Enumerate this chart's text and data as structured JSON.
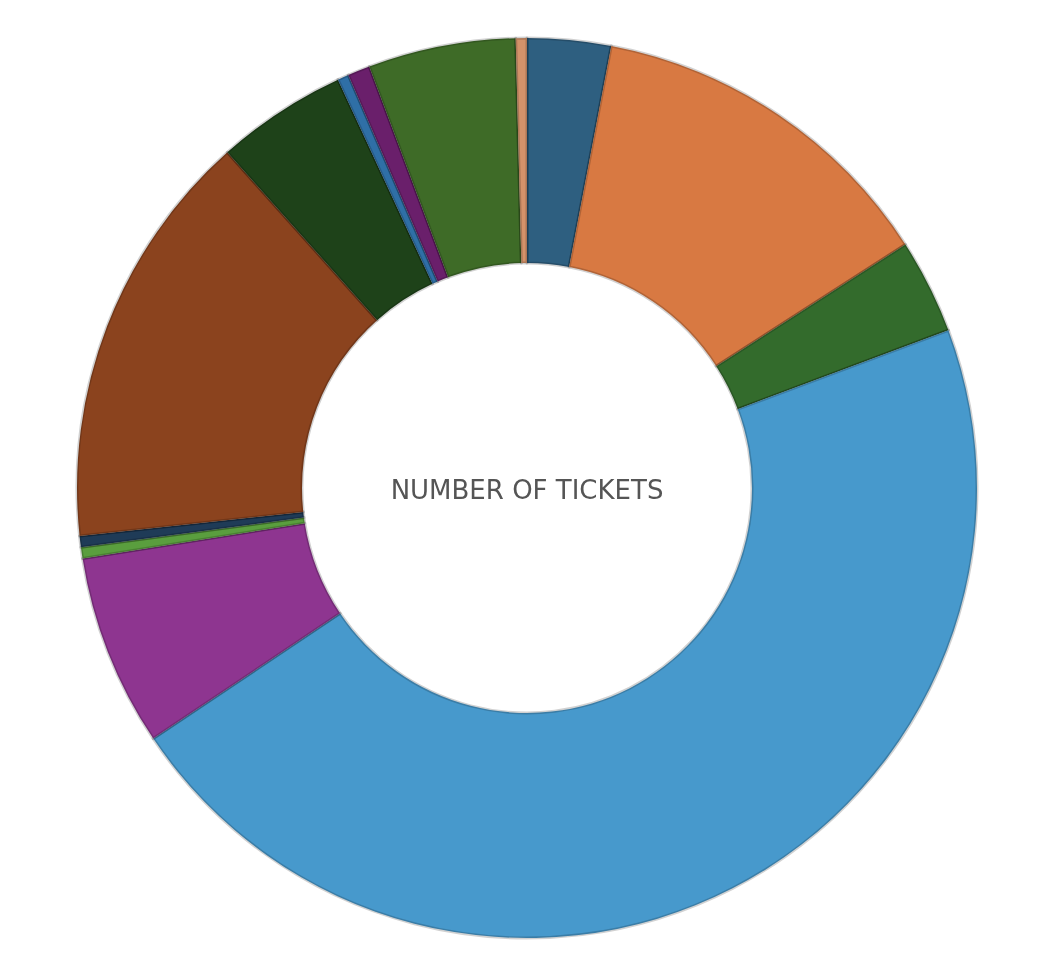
{
  "chart_data": {
    "type": "donut",
    "title": "NUMBER OF TICKETS",
    "categories": [
      null,
      null,
      null,
      null,
      null,
      null,
      null,
      null,
      null,
      null,
      null,
      null,
      null
    ],
    "values": [
      3.0,
      12.9,
      3.4,
      46.3,
      6.9,
      0.4,
      0.4,
      15.1,
      4.7,
      0.4,
      0.8,
      5.3,
      0.4
    ],
    "colors": [
      "#2e5f80",
      "#d87942",
      "#336b2c",
      "#4799cc",
      "#8e3590",
      "#5a9e3e",
      "#1f3b57",
      "#8b431e",
      "#1e4219",
      "#2f6fa6",
      "#6a1f6b",
      "#3e6b27",
      "#d4926a"
    ],
    "legend": false
  }
}
